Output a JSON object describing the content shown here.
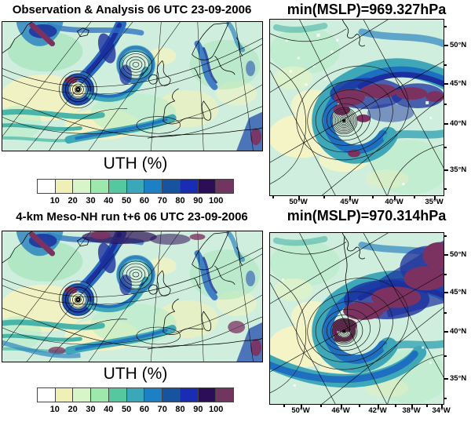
{
  "figure": {
    "panels": {
      "top_left": {
        "title": "Observation & Analysis 06 UTC 23-09-2006"
      },
      "top_right": {
        "title": "min(MSLP)=969.327hPa",
        "lon_labels": [
          "50°W",
          "45°W",
          "40°W",
          "35°W"
        ],
        "lat_labels": [
          "50°N",
          "45°N",
          "40°N",
          "35°N"
        ]
      },
      "bottom_left": {
        "title": "4-km Meso-NH run t+6 06 UTC 23-09-2006"
      },
      "bottom_right": {
        "title": "min(MSLP)=970.314hPa",
        "lon_labels": [
          "50°W",
          "46°W",
          "42°W",
          "38°W",
          "34°W"
        ],
        "lat_labels": [
          "50°N",
          "45°N",
          "40°N",
          "35°N"
        ]
      }
    },
    "colorbar": {
      "title": "UTH (%)",
      "tick_labels": [
        "10",
        "20",
        "30",
        "40",
        "50",
        "60",
        "70",
        "80",
        "90",
        "100"
      ],
      "cell_colors": [
        "#ffffff",
        "#eff0b6",
        "#d7f5c9",
        "#9de8ad",
        "#55c8a0",
        "#3aa8b8",
        "#1d7fc4",
        "#17539e",
        "#1b2cb4",
        "#2c0d57",
        "#71355f"
      ]
    }
  },
  "chart_data": [
    {
      "type": "heatmap",
      "panel": "observation_overview",
      "title": "Observation & Analysis 06 UTC 23-09-2006",
      "variable": "UTH (%)",
      "colorbar_ticks": [
        10,
        20,
        30,
        40,
        50,
        60,
        70,
        80,
        90,
        100
      ],
      "legend_position": "below"
    },
    {
      "type": "heatmap",
      "panel": "observation_zoom",
      "title": "min(MSLP)=969.327hPa",
      "min_mslp_hpa": 969.327,
      "x_ticks": [
        "50°W",
        "45°W",
        "40°W",
        "35°W"
      ],
      "y_ticks": [
        "50°N",
        "45°N",
        "40°N",
        "35°N"
      ],
      "overlay": "MSLP contours around cyclone center"
    },
    {
      "type": "heatmap",
      "panel": "model_overview",
      "title": "4-km Meso-NH run t+6 06 UTC 23-09-2006",
      "variable": "UTH (%)",
      "colorbar_ticks": [
        10,
        20,
        30,
        40,
        50,
        60,
        70,
        80,
        90,
        100
      ],
      "legend_position": "below"
    },
    {
      "type": "heatmap",
      "panel": "model_zoom",
      "title": "min(MSLP)=970.314hPa",
      "min_mslp_hpa": 970.314,
      "x_ticks": [
        "50°W",
        "46°W",
        "42°W",
        "38°W",
        "34°W"
      ],
      "y_ticks": [
        "50°N",
        "45°N",
        "40°N",
        "35°N"
      ],
      "overlay": "MSLP contours around cyclone center"
    }
  ]
}
